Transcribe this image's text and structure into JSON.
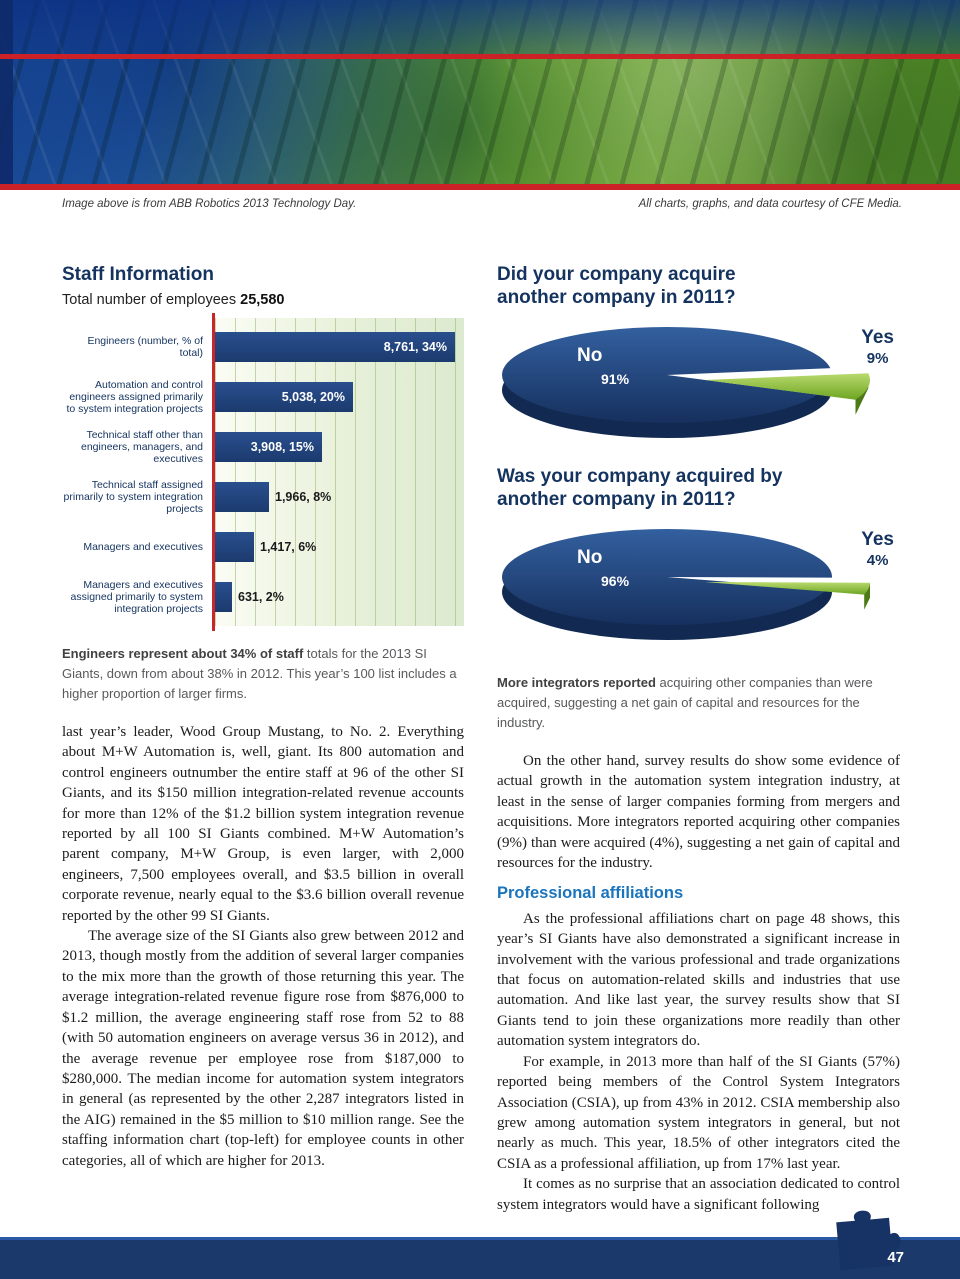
{
  "banner": {
    "caption_left": "Image above is from ABB Robotics 2013 Technology Day.",
    "caption_right": "All charts, graphs, and data courtesy of CFE Media."
  },
  "staff": {
    "title": "Staff Information",
    "subtitle_label": "Total number of employees ",
    "subtitle_value": "25,580"
  },
  "chart_data": [
    {
      "type": "bar",
      "orientation": "horizontal",
      "title": "Staff Information",
      "categories": [
        "Engineers (number, % of total)",
        "Automation and control engineers assigned primarily to system integration projects",
        "Technical staff other than engineers, managers, and executives",
        "Technical staff assigned primarily to system integration projects",
        "Managers and executives",
        "Managers and executives assigned primarily to system integration projects"
      ],
      "values": [
        8761,
        5038,
        3908,
        1966,
        1417,
        631
      ],
      "value_labels": [
        "8,761, 34%",
        "5,038, 20%",
        "3,908, 15%",
        "1,966, 8%",
        "1,417, 6%",
        "631, 2%"
      ],
      "percents": [
        34,
        20,
        15,
        8,
        6,
        2
      ],
      "bar_color": "#1c3e74",
      "axis_color": "#c9252b",
      "xlim": [
        0,
        9000
      ],
      "grid": true
    },
    {
      "type": "pie",
      "title": "Did your company acquire another company in 2011?",
      "labels": [
        "No",
        "Yes"
      ],
      "values": [
        91,
        9
      ],
      "pct": [
        "91%",
        "9%"
      ],
      "colors": [
        "#1c3e74",
        "#7fb433"
      ],
      "legend_position": "inside"
    },
    {
      "type": "pie",
      "title": "Was your company acquired by another company in 2011?",
      "labels": [
        "No",
        "Yes"
      ],
      "values": [
        96,
        4
      ],
      "pct": [
        "96%",
        "4%"
      ],
      "colors": [
        "#1c3e74",
        "#7fb433"
      ],
      "legend_position": "inside"
    }
  ],
  "captions": {
    "left_bold": "Engineers represent about 34% of staff",
    "left_rest": " totals for the 2013 SI Giants, down from about 38% in 2012. This year’s 100 list includes a higher proportion of larger firms.",
    "right_bold": "More integrators reported",
    "right_rest": " acquiring other companies than were acquired, suggesting a net gain of capital and resources for the industry."
  },
  "article": {
    "left": [
      "last year’s leader, Wood Group Mustang, to No. 2. Everything about M+W Automation is, well, giant. Its 800 automation and control engineers outnumber the entire staff at 96 of the other SI Giants, and its $150 million integration-related revenue accounts for more than 12% of the $1.2 billion system integration revenue reported by all 100 SI Giants combined. M+W Automation’s parent company, M+W Group, is even larger, with 2,000 engineers, 7,500 employees overall, and $3.5 billion in overall corporate revenue, nearly equal to the $3.6 billion overall revenue reported by the other 99 SI Giants.",
      "The average size of the SI Giants also grew between 2012 and 2013, though mostly from the addition of several larger companies to the mix more than the growth of those returning this year. The average integration-related revenue figure rose from $876,000 to $1.2 million, the average engineering staff rose from 52 to 88 (with 50 automation engineers  on average versus 36 in 2012), and the average revenue per employee rose from $187,000 to $280,000. The median income for automation system integrators in general (as represented by the other 2,287 integrators listed in the AIG) remained in the $5 million to $10 million range. See the staffing information chart (top-left) for employee counts in other categories, all of which are higher for 2013."
    ],
    "right_intro": [
      "On the other hand, survey results do show some evidence of actual growth in the automation system integration industry, at least in the sense of larger companies forming from mergers and acquisitions. More integrators reported acquiring other companies (9%) than were acquired (4%), suggesting a net gain of capital and resources for the industry."
    ],
    "subheading": "Professional affiliations",
    "right_rest": [
      "As the professional affiliations chart on page 48 shows, this year’s SI Giants have also demonstrated a significant increase in involvement with the various professional and trade organizations that focus on automation-related skills and industries that use automation. And like last year, the survey results show that SI Giants tend to join these organizations more readily than other automation system integrators do.",
      "For example, in 2013 more than half of the SI Giants (57%) reported being members of the Control System Integrators Association (CSIA), up from 43% in 2012. CSIA membership also grew among automation system integrators in general, but not nearly as much. This year, 18.5% of other integrators cited the CSIA as a professional affiliation, up from 17% last year.",
      "It comes as no surprise that an association dedicated to control system integrators would have a significant following"
    ]
  },
  "footer": {
    "page_number": "47"
  }
}
